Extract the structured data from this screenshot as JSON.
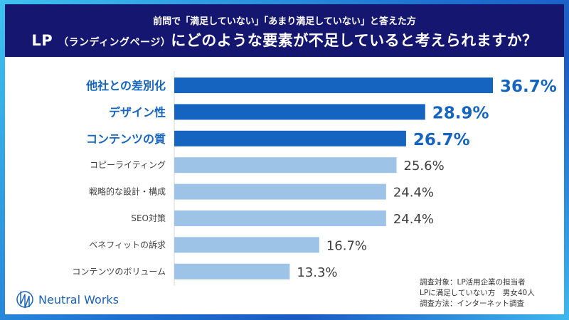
{
  "header": {
    "subtitle": "前問で「満足していない」「あまり満足していない」と答えた方",
    "title_lp": "LP",
    "title_paren": "（ランディングページ）",
    "title_rest": "にどのような要素が不足していると考えられますか？"
  },
  "chart_data": {
    "type": "bar",
    "orientation": "horizontal",
    "categories": [
      "他社との差別化",
      "デザイン性",
      "コンテンツの質",
      "コピーライティング",
      "戦略的な設計・構成",
      "SEO対策",
      "ベネフィットの訴求",
      "コンテンツのボリューム"
    ],
    "values": [
      36.7,
      28.9,
      26.7,
      25.6,
      24.4,
      24.4,
      16.7,
      13.3
    ],
    "labels": [
      "36.7%",
      "28.9%",
      "26.7%",
      "25.6%",
      "24.4%",
      "24.4%",
      "16.7%",
      "13.3%"
    ],
    "highlight_count": 3,
    "xlim": [
      0,
      40
    ],
    "grid": false,
    "colors": {
      "highlight": "#1565c0",
      "normal": "#9dc3e6",
      "highlight_text": "#1565c0",
      "normal_text": "#404040"
    }
  },
  "notes": [
    "調査対象：LP活用企業の担当者",
    "LPに満足していない方　男女40人",
    "調査方法：インターネット調査"
  ],
  "brand": {
    "name": "Neutral Works"
  }
}
